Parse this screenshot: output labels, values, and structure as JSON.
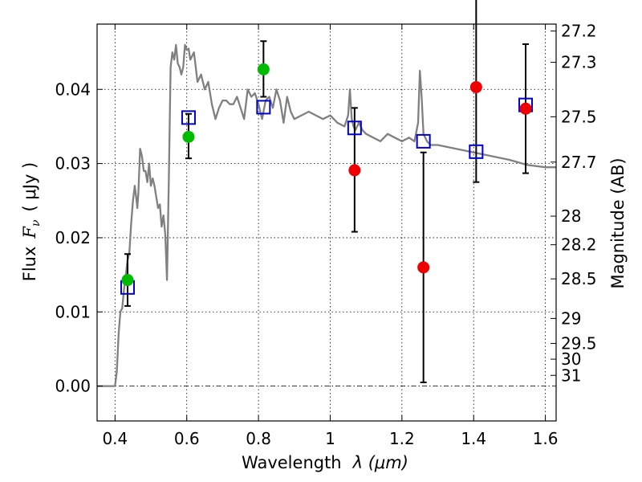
{
  "chart_data": {
    "type": "scatter",
    "title": "",
    "xlabel_text": "Wavelength",
    "xlabel_math": "λ (μm)",
    "ylabel_text": "Flux",
    "ylabel_math_symbol": "F",
    "ylabel_math_sub": "ν",
    "ylabel_units": "( μJy )",
    "right_ylabel": "Magnitude (AB)",
    "xlim": [
      0.35,
      1.63
    ],
    "ylim": [
      -0.0047,
      0.0488
    ],
    "grid": true,
    "x_ticks": [
      0.4,
      0.6,
      0.8,
      1.0,
      1.2,
      1.4,
      1.6
    ],
    "x_tick_labels": [
      "0.4",
      "0.6",
      "0.8",
      "1",
      "1.2",
      "1.4",
      "1.6"
    ],
    "y_ticks": [
      0.0,
      0.01,
      0.02,
      0.03,
      0.04
    ],
    "y_tick_labels": [
      "0.00",
      "0.01",
      "0.02",
      "0.03",
      "0.04"
    ],
    "right_ticks": [
      {
        "label": "27.2",
        "mag": 27.2
      },
      {
        "label": "27.3",
        "mag": 27.3
      },
      {
        "label": "27.5",
        "mag": 27.5
      },
      {
        "label": "27.7",
        "mag": 27.7
      },
      {
        "label": "28",
        "mag": 28.0
      },
      {
        "label": "28.2",
        "mag": 28.2
      },
      {
        "label": "28.5",
        "mag": 28.5
      },
      {
        "label": "29",
        "mag": 29.0
      },
      {
        "label": "29.5",
        "mag": 29.5
      },
      {
        "label": "30",
        "mag": 30.0
      },
      {
        "label": "31",
        "mag": 31.0
      }
    ],
    "colors": {
      "model": "#808080",
      "green": "#00bb00",
      "red": "#ee0000",
      "square": "#0000cc",
      "errorbar": "#000000",
      "zero_line": "#000000"
    },
    "series": [
      {
        "kind": "model_sed",
        "x": [
          0.35,
          0.385,
          0.395,
          0.4,
          0.405,
          0.41,
          0.415,
          0.42,
          0.425,
          0.43,
          0.435,
          0.44,
          0.445,
          0.45,
          0.455,
          0.46,
          0.462,
          0.465,
          0.47,
          0.475,
          0.48,
          0.485,
          0.49,
          0.495,
          0.5,
          0.505,
          0.51,
          0.515,
          0.52,
          0.525,
          0.53,
          0.535,
          0.54,
          0.545,
          0.55,
          0.555,
          0.56,
          0.565,
          0.57,
          0.575,
          0.58,
          0.585,
          0.59,
          0.595,
          0.6,
          0.605,
          0.61,
          0.62,
          0.63,
          0.64,
          0.65,
          0.66,
          0.67,
          0.68,
          0.69,
          0.7,
          0.71,
          0.72,
          0.73,
          0.74,
          0.75,
          0.76,
          0.77,
          0.78,
          0.79,
          0.8,
          0.81,
          0.82,
          0.83,
          0.84,
          0.85,
          0.86,
          0.87,
          0.88,
          0.89,
          0.9,
          0.92,
          0.94,
          0.96,
          0.98,
          1.0,
          1.02,
          1.04,
          1.05,
          1.055,
          1.06,
          1.065,
          1.07,
          1.08,
          1.09,
          1.1,
          1.12,
          1.14,
          1.16,
          1.18,
          1.2,
          1.22,
          1.235,
          1.245,
          1.25,
          1.255,
          1.26,
          1.265,
          1.27,
          1.28,
          1.3,
          1.35,
          1.4,
          1.45,
          1.5,
          1.55,
          1.6,
          1.63
        ],
        "y": [
          0.0,
          0.0,
          0.0,
          0.0,
          0.002,
          0.007,
          0.01,
          0.0105,
          0.013,
          0.015,
          0.017,
          0.018,
          0.022,
          0.025,
          0.027,
          0.025,
          0.024,
          0.026,
          0.032,
          0.031,
          0.029,
          0.029,
          0.0275,
          0.03,
          0.027,
          0.028,
          0.027,
          0.0255,
          0.024,
          0.0245,
          0.0215,
          0.023,
          0.0205,
          0.0143,
          0.028,
          0.043,
          0.045,
          0.044,
          0.046,
          0.0435,
          0.043,
          0.042,
          0.043,
          0.046,
          0.0453,
          0.0455,
          0.044,
          0.045,
          0.041,
          0.042,
          0.04,
          0.041,
          0.038,
          0.036,
          0.0375,
          0.0385,
          0.0385,
          0.038,
          0.038,
          0.039,
          0.0375,
          0.036,
          0.04,
          0.039,
          0.0395,
          0.038,
          0.036,
          0.0385,
          0.039,
          0.0375,
          0.04,
          0.0385,
          0.0355,
          0.039,
          0.037,
          0.036,
          0.0365,
          0.037,
          0.0365,
          0.036,
          0.0365,
          0.0355,
          0.035,
          0.0365,
          0.04,
          0.036,
          0.035,
          0.0345,
          0.0355,
          0.0345,
          0.034,
          0.0335,
          0.033,
          0.034,
          0.0335,
          0.033,
          0.0335,
          0.033,
          0.0355,
          0.0425,
          0.039,
          0.034,
          0.0335,
          0.033,
          0.0325,
          0.0325,
          0.032,
          0.0315,
          0.031,
          0.0305,
          0.0298,
          0.0295,
          0.0295
        ]
      },
      {
        "kind": "green_points",
        "points": [
          {
            "x": 0.435,
            "y": 0.0143,
            "err_lo": 0.0035,
            "err_hi": 0.0035
          },
          {
            "x": 0.605,
            "y": 0.0336,
            "err_lo": 0.0029,
            "err_hi": 0.0031
          },
          {
            "x": 0.814,
            "y": 0.0427,
            "err_lo": 0.0037,
            "err_hi": 0.0038
          }
        ]
      },
      {
        "kind": "red_points",
        "points": [
          {
            "x": 1.068,
            "y": 0.0291,
            "err_lo": 0.0083,
            "err_hi": 0.0084
          },
          {
            "x": 1.26,
            "y": 0.016,
            "err_lo": 0.0155,
            "err_hi": 0.0155
          },
          {
            "x": 1.407,
            "y": 0.0403,
            "err_lo": 0.0128,
            "err_hi": 0.0128
          },
          {
            "x": 1.545,
            "y": 0.0374,
            "err_lo": 0.0087,
            "err_hi": 0.0087
          }
        ]
      },
      {
        "kind": "model_photometry_squares",
        "points": [
          {
            "x": 0.435,
            "y": 0.0133
          },
          {
            "x": 0.605,
            "y": 0.0362
          },
          {
            "x": 0.814,
            "y": 0.0376
          },
          {
            "x": 1.068,
            "y": 0.0348
          },
          {
            "x": 1.26,
            "y": 0.033
          },
          {
            "x": 1.407,
            "y": 0.0316
          },
          {
            "x": 1.545,
            "y": 0.0379
          }
        ]
      }
    ]
  }
}
